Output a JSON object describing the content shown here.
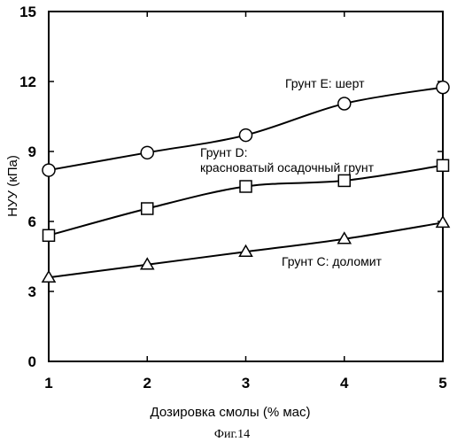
{
  "chart_data": {
    "type": "line",
    "xlabel": "Дозировка смолы (% мас)",
    "ylabel": "НУУ (кПа)",
    "x": [
      1,
      2,
      3,
      4,
      5
    ],
    "xlim": [
      1,
      5
    ],
    "ylim": [
      0,
      15
    ],
    "xticks": [
      "1",
      "2",
      "3",
      "4",
      "5"
    ],
    "yticks": [
      "0",
      "3",
      "6",
      "9",
      "12",
      "15"
    ],
    "grid": false,
    "series": [
      {
        "name": "Грунт E: шерт",
        "marker": "circle",
        "values": [
          8.2,
          8.95,
          9.7,
          11.05,
          11.75
        ]
      },
      {
        "name": "Грунт D: красноватый осадочный грунт",
        "marker": "square",
        "values": [
          5.4,
          6.55,
          7.5,
          7.75,
          8.4
        ]
      },
      {
        "name": "Грунт C: доломит",
        "marker": "triangle",
        "values": [
          3.6,
          4.15,
          4.7,
          5.25,
          5.95
        ]
      }
    ],
    "annotations": {
      "e": "Грунт E: шерт",
      "d_line1": "Грунт D:",
      "d_line2": "красноватый осадочный грунт",
      "c": "Грунт C: доломит"
    }
  },
  "caption": "Фиг.14"
}
